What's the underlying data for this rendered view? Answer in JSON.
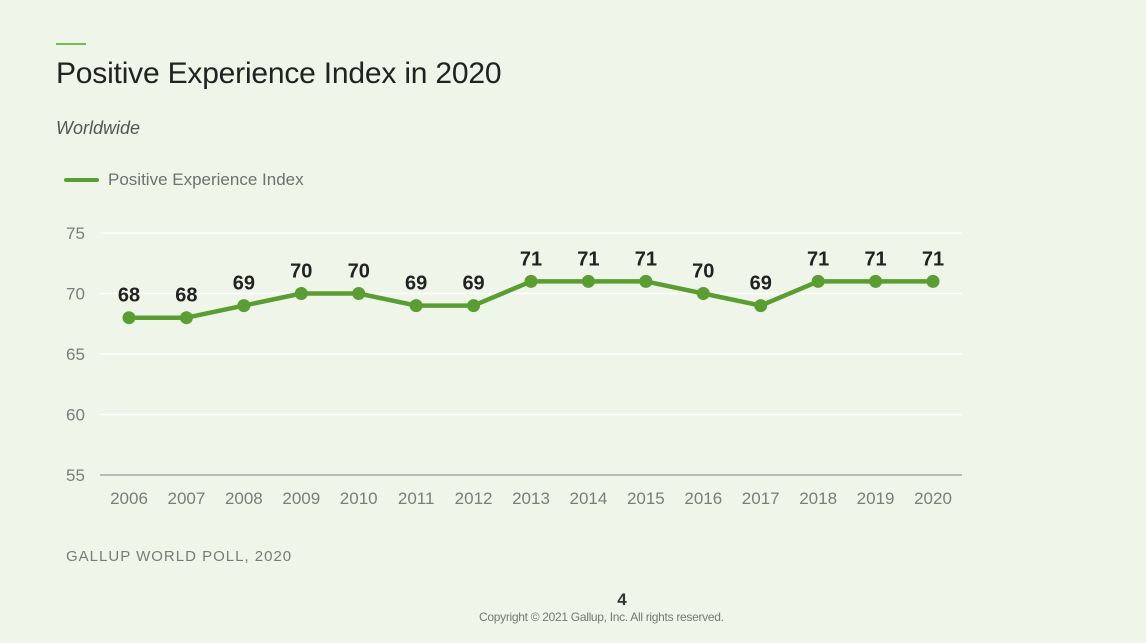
{
  "header": {
    "title": "Positive Experience Index in 2020",
    "subtitle": "Worldwide"
  },
  "legend": {
    "label": "Positive Experience Index",
    "color": "#5a9e33"
  },
  "footer": {
    "source": "GALLUP WORLD POLL, 2020",
    "page_number": "4",
    "copyright": "Copyright © 2021 Gallup, Inc. All rights reserved."
  },
  "chart_data": {
    "type": "line",
    "title": "Positive Experience Index in 2020",
    "subtitle": "Worldwide",
    "xlabel": "",
    "ylabel": "",
    "x": [
      "2006",
      "2007",
      "2008",
      "2009",
      "2010",
      "2011",
      "2012",
      "2013",
      "2014",
      "2015",
      "2016",
      "2017",
      "2018",
      "2019",
      "2020"
    ],
    "series": [
      {
        "name": "Positive Experience Index",
        "color": "#5a9e33",
        "values": [
          68,
          68,
          69,
          70,
          70,
          69,
          69,
          71,
          71,
          71,
          70,
          69,
          71,
          71,
          71
        ]
      }
    ],
    "ylim": [
      55,
      75
    ],
    "yticks": [
      55,
      60,
      65,
      70,
      75
    ],
    "grid": true,
    "legend_position": "top-left",
    "data_labels": true
  }
}
